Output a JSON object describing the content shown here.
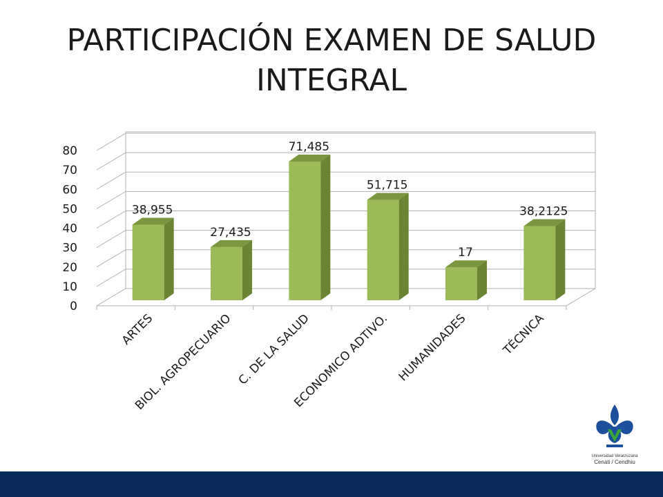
{
  "title": "PARTICIPACIÓN EXAMEN DE SALUD INTEGRAL",
  "chart_data": {
    "type": "bar",
    "categories": [
      "ARTES",
      "BIOL. AGROPECUARIO",
      "C. DE LA SALUD",
      "ECONOMICO ADTIVO.",
      "HUMANIDADES",
      "TÉCNICA"
    ],
    "values": [
      38.955,
      27.435,
      71.485,
      51.715,
      17,
      38.2125
    ],
    "data_labels": [
      "38,955",
      "27,435",
      "71,485",
      "51,715",
      "17",
      "38,2125"
    ],
    "y_ticks": [
      "0",
      "10",
      "20",
      "30",
      "40",
      "50",
      "60",
      "70",
      "80"
    ],
    "ylim": [
      0,
      80
    ],
    "grid": true,
    "three_d": true,
    "legend": "none",
    "colors": {
      "bar_front": "#9bbb59",
      "bar_side": "#6b8434",
      "bar_top": "#7a963e",
      "grid": "#b0b0b0"
    }
  },
  "logo": {
    "line1": "Universidad Veracruzana",
    "line2": "Cenati / Cendhiu",
    "colors": {
      "blue": "#1c4f9c",
      "green": "#3aa635"
    }
  }
}
